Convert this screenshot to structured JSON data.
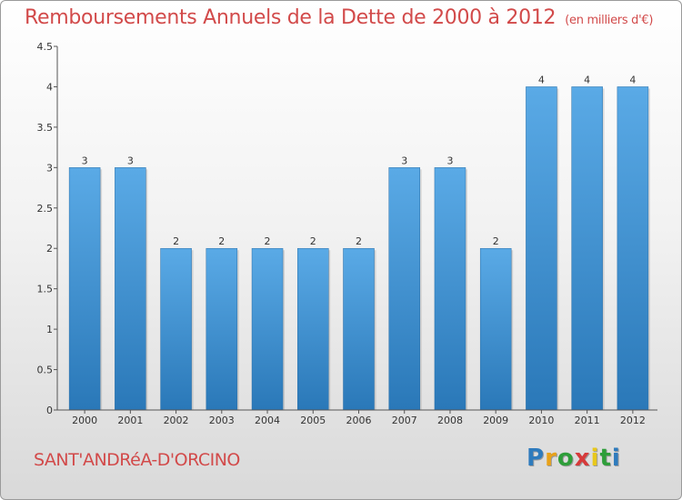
{
  "header": {
    "title": "Remboursements Annuels de la Dette de 2000 à 2012",
    "unit": "(en milliers d'€)"
  },
  "footer": {
    "place": "SANT'ANDRéA-D'ORCINO",
    "logo_letters": [
      "P",
      "r",
      "o",
      "x",
      "i",
      "t",
      "i"
    ],
    "logo_colors": [
      "#2e7bbd",
      "#e8a21b",
      "#2e9e3a",
      "#d63a3a",
      "#e8c81b",
      "#2e9e3a",
      "#2e7bbd"
    ]
  },
  "colors": {
    "bar_top": "#5aaae6",
    "bar_bottom": "#2a78b8",
    "axis": "#555555",
    "label": "#333333"
  },
  "chart_data": {
    "type": "bar",
    "categories": [
      "2000",
      "2001",
      "2002",
      "2003",
      "2004",
      "2005",
      "2006",
      "2007",
      "2008",
      "2009",
      "2010",
      "2011",
      "2012"
    ],
    "values": [
      3,
      3,
      2,
      2,
      2,
      2,
      2,
      3,
      3,
      2,
      4,
      4,
      4
    ],
    "data_labels": [
      "3",
      "3",
      "2",
      "2",
      "2",
      "2",
      "2",
      "3",
      "3",
      "2",
      "4",
      "4",
      "4"
    ],
    "yticks": [
      "0",
      "0.5",
      "1",
      "1.5",
      "2",
      "2.5",
      "3",
      "3.5",
      "4",
      "4.5"
    ],
    "ylim": [
      0,
      4.5
    ],
    "grid": false,
    "legend": "none"
  }
}
